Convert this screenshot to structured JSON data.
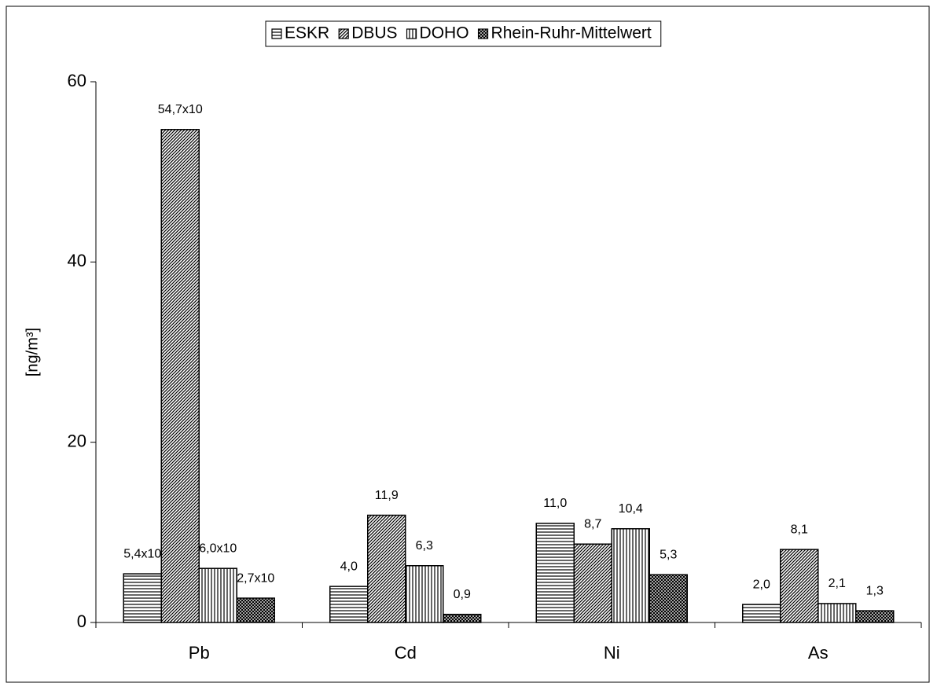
{
  "chart_data": {
    "type": "bar",
    "y_label": "[ng/m³]",
    "categories": [
      "Pb",
      "Cd",
      "Ni",
      "As"
    ],
    "series": [
      {
        "name": "ESKR",
        "color": "#000000",
        "values": [
          5.4,
          4.0,
          11.0,
          2.0
        ],
        "value_labels": [
          "5,4x10",
          "4,0",
          "11,0",
          "2,0"
        ]
      },
      {
        "name": "DBUS",
        "color": "#000000",
        "values": [
          54.7,
          11.9,
          8.7,
          8.1
        ],
        "value_labels": [
          "54,7x10",
          "11,9",
          "8,7",
          "8,1"
        ]
      },
      {
        "name": "DOHO",
        "color": "#000000",
        "values": [
          6.0,
          6.3,
          10.4,
          2.1
        ],
        "value_labels": [
          "6,0x10",
          "6,3",
          "10,4",
          "2,1"
        ]
      },
      {
        "name": "Rhein-Ruhr-Mittelwert",
        "color": "#000000",
        "values": [
          2.7,
          0.9,
          5.3,
          1.3
        ],
        "value_labels": [
          "2,7x10",
          "0,9",
          "5,3",
          "1,3"
        ]
      }
    ],
    "ylim": [
      0,
      60
    ],
    "yticks": [
      0,
      20,
      40,
      60
    ],
    "grid": false,
    "legend": "top"
  }
}
